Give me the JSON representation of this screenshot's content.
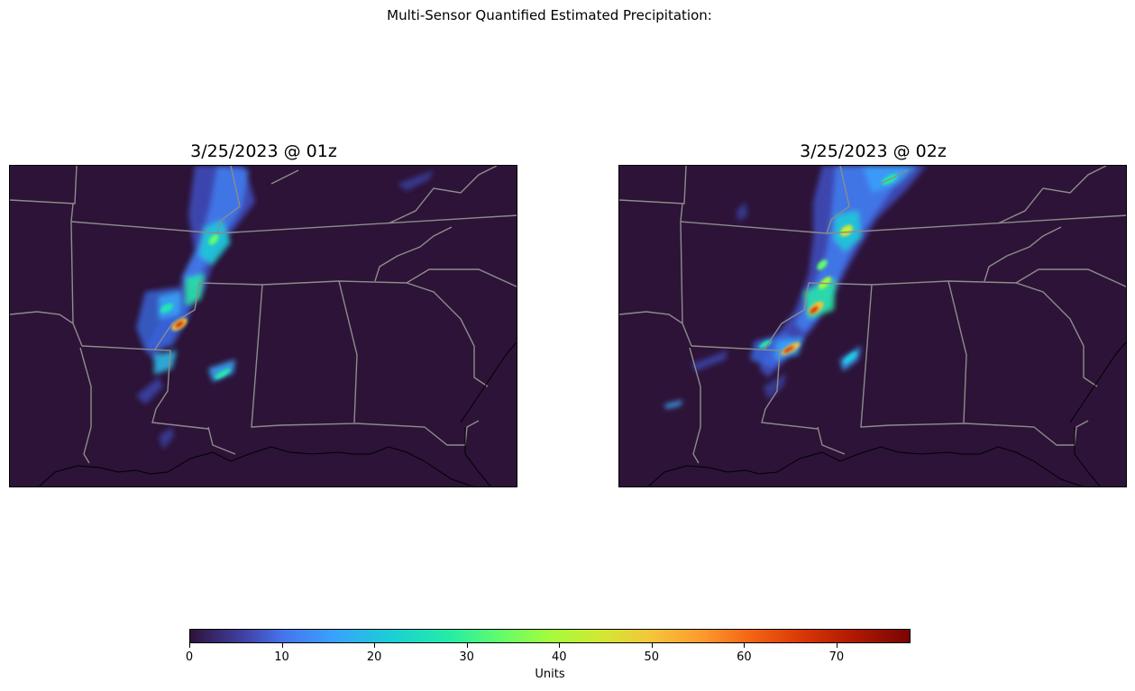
{
  "figure": {
    "suptitle": "Multi-Sensor Quantified Estimated Precipitation:"
  },
  "panels": [
    {
      "title": "3/25/2023 @ 01z"
    },
    {
      "title": "3/25/2023 @ 02z"
    }
  ],
  "colorbar": {
    "label": "Units",
    "colormap": "turbo",
    "range": [
      0,
      78
    ],
    "ticks": [
      "0",
      "10",
      "20",
      "30",
      "40",
      "50",
      "60",
      "70"
    ]
  },
  "colors": {
    "background": "#2d1338",
    "state_borders": "#8c8c8c",
    "coastline": "#000000"
  }
}
